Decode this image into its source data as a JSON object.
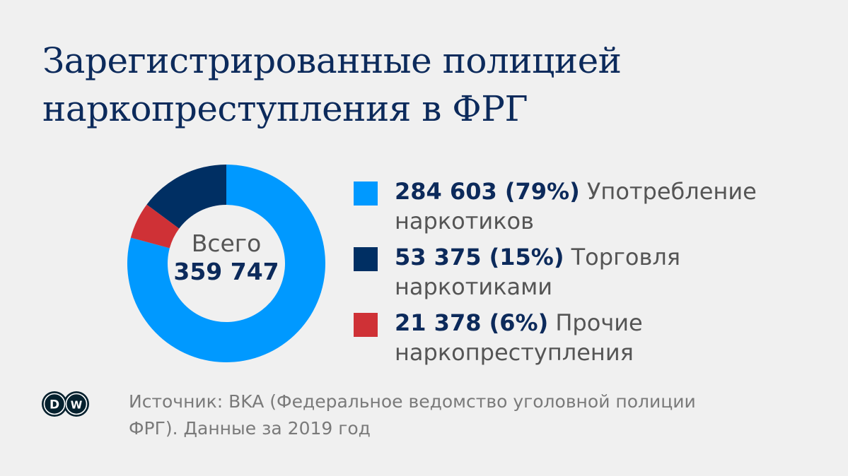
{
  "title": {
    "line1": "Зарегистрированные полицией",
    "line2": "наркопреступления в ФРГ"
  },
  "center": {
    "label": "Всего",
    "total": "359 747"
  },
  "legend": [
    {
      "value": "284 603 (79%)",
      "label1": "Употребление",
      "label2": "наркотиков",
      "color": "#0099ff"
    },
    {
      "value": "53 375 (15%)",
      "label1": "Торговля",
      "label2": "наркотиками",
      "color": "#002f63"
    },
    {
      "value": "21 378 (6%)",
      "label1": "Прочие",
      "label2": "наркопреступления",
      "color": "#cf3136"
    }
  ],
  "source": {
    "line1": "Источник: BKA (Федеральное ведомство уголовной полиции",
    "line2": "ФРГ). Данные за 2019 год"
  },
  "logo": {
    "text": "DW"
  },
  "chart_data": {
    "type": "pie",
    "subtype": "donut",
    "title": "Зарегистрированные полицией наркопреступления в ФРГ",
    "total": 359747,
    "slices": [
      {
        "name": "Употребление наркотиков",
        "value": 284603,
        "percent": 79,
        "color": "#0099ff"
      },
      {
        "name": "Прочие наркопреступления",
        "value": 21378,
        "percent": 6,
        "color": "#cf3136"
      },
      {
        "name": "Торговля наркотиками",
        "value": 53375,
        "percent": 15,
        "color": "#002f63"
      }
    ],
    "legend_placement": "right"
  }
}
